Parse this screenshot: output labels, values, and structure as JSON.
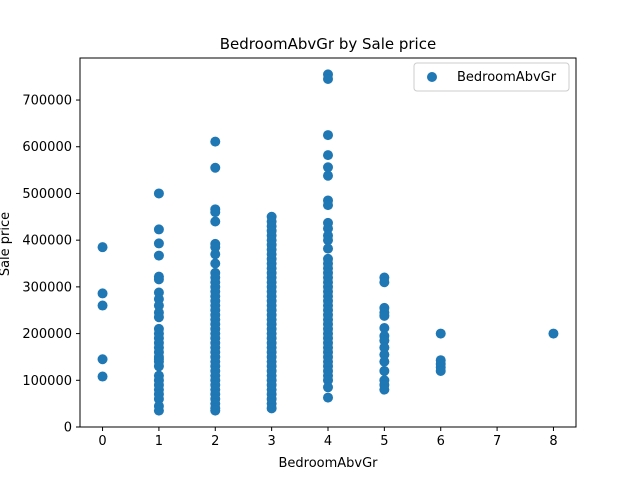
{
  "chart_data": {
    "type": "scatter",
    "title": "BedroomAbvGr by Sale price",
    "xlabel": "BedroomAbvGr",
    "ylabel": "Sale price",
    "xlim": [
      -0.4,
      8.4
    ],
    "ylim": [
      0,
      790000
    ],
    "xticks": [
      0,
      1,
      2,
      3,
      4,
      5,
      6,
      7,
      8
    ],
    "yticks": [
      0,
      100000,
      200000,
      300000,
      400000,
      500000,
      600000,
      700000
    ],
    "grid": false,
    "legend_position": "top-right",
    "series": [
      {
        "name": "BedroomAbvGr",
        "color": "#1f77b4",
        "points": [
          [
            0,
            385000
          ],
          [
            0,
            286000
          ],
          [
            0,
            260000
          ],
          [
            0,
            145000
          ],
          [
            0,
            108000
          ],
          [
            1,
            500000
          ],
          [
            1,
            423000
          ],
          [
            1,
            393000
          ],
          [
            1,
            367000
          ],
          [
            1,
            322000
          ],
          [
            1,
            316000
          ],
          [
            1,
            288000
          ],
          [
            1,
            274000
          ],
          [
            1,
            260000
          ],
          [
            1,
            245000
          ],
          [
            1,
            235000
          ],
          [
            1,
            210000
          ],
          [
            1,
            200000
          ],
          [
            1,
            190000
          ],
          [
            1,
            180000
          ],
          [
            1,
            170000
          ],
          [
            1,
            160000
          ],
          [
            1,
            150000
          ],
          [
            1,
            145000
          ],
          [
            1,
            140000
          ],
          [
            1,
            130000
          ],
          [
            1,
            110000
          ],
          [
            1,
            100000
          ],
          [
            1,
            90000
          ],
          [
            1,
            80000
          ],
          [
            1,
            70000
          ],
          [
            1,
            60000
          ],
          [
            1,
            45000
          ],
          [
            1,
            35000
          ],
          [
            2,
            611000
          ],
          [
            2,
            555000
          ],
          [
            2,
            466000
          ],
          [
            2,
            460000
          ],
          [
            2,
            440000
          ],
          [
            2,
            392000
          ],
          [
            2,
            385000
          ],
          [
            2,
            370000
          ],
          [
            2,
            350000
          ],
          [
            2,
            330000
          ],
          [
            2,
            320000
          ],
          [
            2,
            310000
          ],
          [
            2,
            300000
          ],
          [
            2,
            290000
          ],
          [
            2,
            280000
          ],
          [
            2,
            270000
          ],
          [
            2,
            260000
          ],
          [
            2,
            250000
          ],
          [
            2,
            240000
          ],
          [
            2,
            230000
          ],
          [
            2,
            220000
          ],
          [
            2,
            210000
          ],
          [
            2,
            200000
          ],
          [
            2,
            190000
          ],
          [
            2,
            180000
          ],
          [
            2,
            170000
          ],
          [
            2,
            160000
          ],
          [
            2,
            150000
          ],
          [
            2,
            140000
          ],
          [
            2,
            130000
          ],
          [
            2,
            120000
          ],
          [
            2,
            110000
          ],
          [
            2,
            100000
          ],
          [
            2,
            90000
          ],
          [
            2,
            80000
          ],
          [
            2,
            70000
          ],
          [
            2,
            60000
          ],
          [
            2,
            50000
          ],
          [
            2,
            40000
          ],
          [
            2,
            35000
          ],
          [
            3,
            450000
          ],
          [
            3,
            440000
          ],
          [
            3,
            430000
          ],
          [
            3,
            420000
          ],
          [
            3,
            410000
          ],
          [
            3,
            400000
          ],
          [
            3,
            390000
          ],
          [
            3,
            380000
          ],
          [
            3,
            370000
          ],
          [
            3,
            360000
          ],
          [
            3,
            350000
          ],
          [
            3,
            340000
          ],
          [
            3,
            330000
          ],
          [
            3,
            320000
          ],
          [
            3,
            310000
          ],
          [
            3,
            300000
          ],
          [
            3,
            290000
          ],
          [
            3,
            280000
          ],
          [
            3,
            270000
          ],
          [
            3,
            260000
          ],
          [
            3,
            250000
          ],
          [
            3,
            240000
          ],
          [
            3,
            230000
          ],
          [
            3,
            220000
          ],
          [
            3,
            210000
          ],
          [
            3,
            200000
          ],
          [
            3,
            190000
          ],
          [
            3,
            180000
          ],
          [
            3,
            170000
          ],
          [
            3,
            160000
          ],
          [
            3,
            150000
          ],
          [
            3,
            140000
          ],
          [
            3,
            130000
          ],
          [
            3,
            120000
          ],
          [
            3,
            110000
          ],
          [
            3,
            100000
          ],
          [
            3,
            90000
          ],
          [
            3,
            80000
          ],
          [
            3,
            70000
          ],
          [
            3,
            60000
          ],
          [
            3,
            50000
          ],
          [
            3,
            40000
          ],
          [
            4,
            755000
          ],
          [
            4,
            745000
          ],
          [
            4,
            625000
          ],
          [
            4,
            582000
          ],
          [
            4,
            556000
          ],
          [
            4,
            538000
          ],
          [
            4,
            485000
          ],
          [
            4,
            475000
          ],
          [
            4,
            437000
          ],
          [
            4,
            425000
          ],
          [
            4,
            410000
          ],
          [
            4,
            400000
          ],
          [
            4,
            382000
          ],
          [
            4,
            360000
          ],
          [
            4,
            350000
          ],
          [
            4,
            340000
          ],
          [
            4,
            330000
          ],
          [
            4,
            320000
          ],
          [
            4,
            310000
          ],
          [
            4,
            300000
          ],
          [
            4,
            290000
          ],
          [
            4,
            280000
          ],
          [
            4,
            270000
          ],
          [
            4,
            260000
          ],
          [
            4,
            250000
          ],
          [
            4,
            240000
          ],
          [
            4,
            230000
          ],
          [
            4,
            220000
          ],
          [
            4,
            210000
          ],
          [
            4,
            200000
          ],
          [
            4,
            190000
          ],
          [
            4,
            180000
          ],
          [
            4,
            170000
          ],
          [
            4,
            160000
          ],
          [
            4,
            150000
          ],
          [
            4,
            140000
          ],
          [
            4,
            130000
          ],
          [
            4,
            120000
          ],
          [
            4,
            110000
          ],
          [
            4,
            100000
          ],
          [
            4,
            85000
          ],
          [
            4,
            63000
          ],
          [
            5,
            320000
          ],
          [
            5,
            310000
          ],
          [
            5,
            255000
          ],
          [
            5,
            245000
          ],
          [
            5,
            238000
          ],
          [
            5,
            212000
          ],
          [
            5,
            195000
          ],
          [
            5,
            185000
          ],
          [
            5,
            170000
          ],
          [
            5,
            155000
          ],
          [
            5,
            140000
          ],
          [
            5,
            120000
          ],
          [
            5,
            100000
          ],
          [
            5,
            90000
          ],
          [
            5,
            80000
          ],
          [
            6,
            200000
          ],
          [
            6,
            143000
          ],
          [
            6,
            135000
          ],
          [
            6,
            128000
          ],
          [
            6,
            120000
          ],
          [
            8,
            200000
          ]
        ]
      }
    ]
  }
}
